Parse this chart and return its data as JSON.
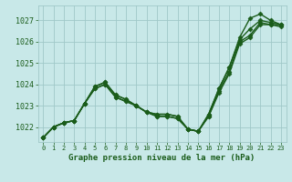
{
  "title": "Graphe pression niveau de la mer (hPa)",
  "bg_color": "#c8e8e8",
  "grid_color": "#a0c8c8",
  "line_color": "#1a5c1a",
  "line_width": 1.0,
  "marker": "D",
  "marker_size": 2.5,
  "xlim": [
    -0.5,
    23.5
  ],
  "ylim": [
    1021.3,
    1027.7
  ],
  "yticks": [
    1022,
    1023,
    1024,
    1025,
    1026,
    1027
  ],
  "xticks": [
    0,
    1,
    2,
    3,
    4,
    5,
    6,
    7,
    8,
    9,
    10,
    11,
    12,
    13,
    14,
    15,
    16,
    17,
    18,
    19,
    20,
    21,
    22,
    23
  ],
  "series": [
    [
      1021.5,
      1022.0,
      1022.2,
      1022.3,
      1023.1,
      1023.9,
      1024.1,
      1023.5,
      1023.3,
      1023.0,
      1022.7,
      1022.6,
      1022.6,
      1022.5,
      1021.9,
      1021.8,
      1022.6,
      1023.8,
      1024.8,
      1026.2,
      1027.1,
      1027.3,
      1027.0,
      1026.8
    ],
    [
      1021.5,
      1022.0,
      1022.2,
      1022.3,
      1023.1,
      1023.9,
      1024.1,
      1023.5,
      1023.3,
      1023.0,
      1022.7,
      1022.6,
      1022.6,
      1022.5,
      1021.9,
      1021.8,
      1022.6,
      1023.8,
      1024.8,
      1026.1,
      1026.6,
      1027.0,
      1026.9,
      1026.8
    ],
    [
      1021.5,
      1022.0,
      1022.2,
      1022.3,
      1023.1,
      1023.8,
      1024.0,
      1023.4,
      1023.2,
      1023.0,
      1022.7,
      1022.5,
      1022.5,
      1022.4,
      1021.9,
      1021.8,
      1022.5,
      1023.7,
      1024.6,
      1026.0,
      1026.3,
      1026.9,
      1026.8,
      1026.8
    ],
    [
      1021.5,
      1022.0,
      1022.2,
      1022.3,
      1023.1,
      1023.8,
      1024.0,
      1023.4,
      1023.2,
      1023.0,
      1022.7,
      1022.5,
      1022.5,
      1022.4,
      1021.9,
      1021.8,
      1022.5,
      1023.6,
      1024.5,
      1025.9,
      1026.2,
      1026.8,
      1026.8,
      1026.7
    ]
  ]
}
